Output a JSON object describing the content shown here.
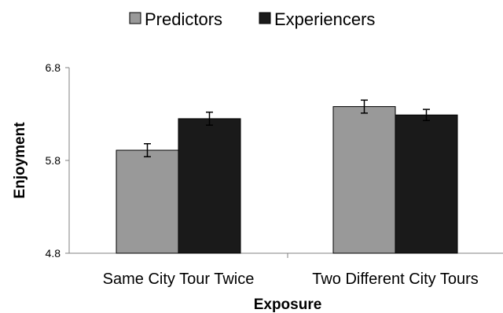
{
  "chart_data": {
    "type": "bar",
    "title": "",
    "xlabel": "Exposure",
    "ylabel": "Enjoyment",
    "ylim": [
      4.8,
      6.8
    ],
    "yticks": [
      "4.8",
      "5.8",
      "6.8"
    ],
    "grid": false,
    "legend_position": "top",
    "categories": [
      "Same City Tour Twice",
      "Two Different City Tours"
    ],
    "series": [
      {
        "name": "Predictors",
        "color": "#999999",
        "values": [
          5.91,
          6.38
        ],
        "error": [
          0.07,
          0.07
        ]
      },
      {
        "name": "Experiencers",
        "color": "#1a1a1a",
        "values": [
          6.25,
          6.29
        ],
        "error": [
          0.07,
          0.06
        ]
      }
    ]
  }
}
